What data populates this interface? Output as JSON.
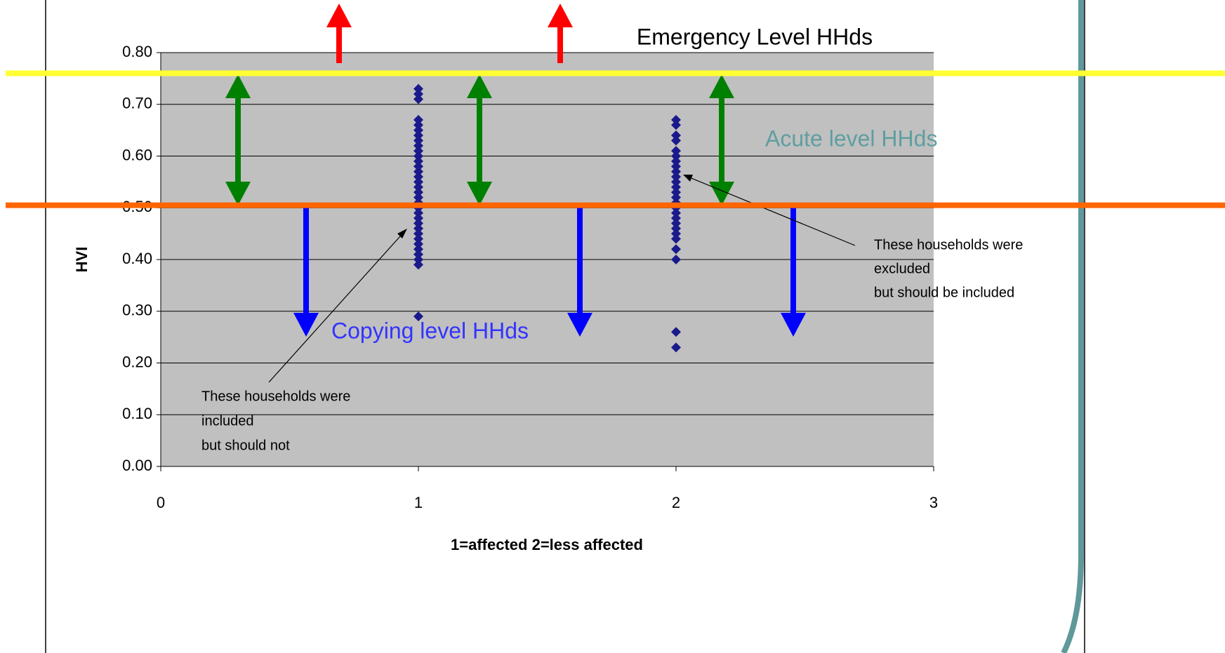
{
  "chart_data": {
    "type": "scatter",
    "ylabel": "HVI",
    "xlabel": "1=affected 2=less affected",
    "xlim": [
      0,
      3
    ],
    "xticks": [
      0,
      1,
      2,
      3
    ],
    "ylim": [
      0,
      0.8
    ],
    "yticks": [
      {
        "value": 0,
        "label": "0.00"
      },
      {
        "value": 0.1,
        "label": "0.10"
      },
      {
        "value": 0.2,
        "label": "0.20"
      },
      {
        "value": 0.3,
        "label": "0.30"
      },
      {
        "value": 0.4,
        "label": "0.40"
      },
      {
        "value": 0.5,
        "label": "0.50"
      },
      {
        "value": 0.6,
        "label": "0.60"
      },
      {
        "value": 0.7,
        "label": "0.70"
      },
      {
        "value": 0.8,
        "label": "0.80"
      }
    ],
    "grid": true,
    "color": "#1a1a8c",
    "x": [
      1,
      1,
      1,
      1,
      1,
      1,
      1,
      1,
      1,
      1,
      1,
      1,
      1,
      1,
      1,
      1,
      1,
      1,
      1,
      1,
      1,
      1,
      1,
      1,
      1,
      1,
      1,
      1,
      1,
      1,
      1,
      1,
      1,
      2,
      2,
      2,
      2,
      2,
      2,
      2,
      2,
      2,
      2,
      2,
      2,
      2,
      2,
      2,
      2,
      2,
      2,
      2,
      2,
      2,
      2,
      2,
      2,
      2,
      2
    ],
    "y": [
      0.73,
      0.72,
      0.71,
      0.67,
      0.66,
      0.65,
      0.64,
      0.63,
      0.62,
      0.61,
      0.6,
      0.59,
      0.58,
      0.57,
      0.56,
      0.55,
      0.54,
      0.53,
      0.52,
      0.51,
      0.5,
      0.49,
      0.48,
      0.47,
      0.46,
      0.45,
      0.44,
      0.43,
      0.42,
      0.41,
      0.4,
      0.39,
      0.29,
      0.67,
      0.66,
      0.64,
      0.63,
      0.61,
      0.6,
      0.59,
      0.58,
      0.57,
      0.56,
      0.55,
      0.54,
      0.53,
      0.52,
      0.51,
      0.5,
      0.49,
      0.48,
      0.47,
      0.46,
      0.45,
      0.44,
      0.42,
      0.4,
      0.26,
      0.23
    ],
    "reference_lines": [
      {
        "value": 0.76,
        "color": "#ffff33"
      },
      {
        "value": 0.505,
        "color": "#ff6600"
      }
    ],
    "annotations": {
      "emergency": "Emergency Level HHds",
      "acute": "Acute level HHds",
      "coping": "Copying level HHds",
      "note_included": [
        "These households were",
        "included",
        "but should not"
      ],
      "note_excluded": [
        "These households were",
        "excluded",
        "but should be included"
      ]
    }
  }
}
